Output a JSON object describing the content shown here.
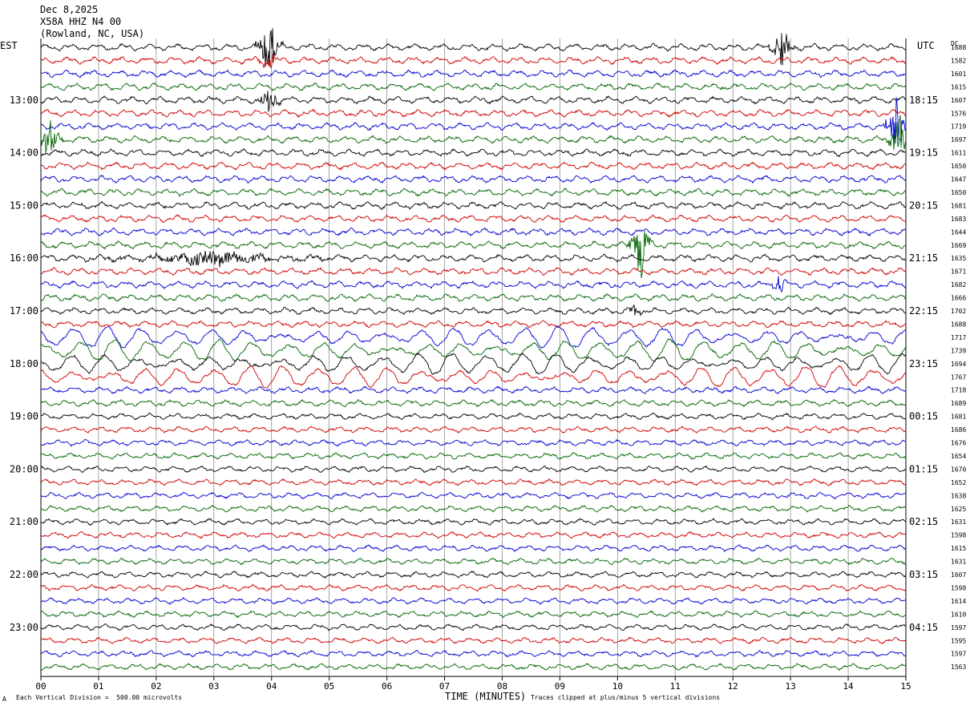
{
  "header": {
    "date": "Dec 8,2025",
    "station": "X58A HHZ N4 00",
    "location": "(Rowland, NC, USA)"
  },
  "left_axis": {
    "label": "EST"
  },
  "right_axis": {
    "label": "UTC",
    "dc_label": "DC"
  },
  "footer": {
    "x_title": "TIME (MINUTES)",
    "scale_note": "Each Vertical Division =  500.00 microvolts",
    "clip_note": "Traces clipped at plus/minus 5 vertical divisions",
    "corner_mark": "A"
  },
  "colors": {
    "cycle": [
      "#000000",
      "#d00000",
      "#0000d0",
      "#006400"
    ],
    "grid": "#808080"
  },
  "chart_data": {
    "type": "line",
    "title": "X58A HHZ N4 00",
    "xlabel": "TIME (MINUTES)",
    "ylabel": "",
    "xlim": [
      0,
      15
    ],
    "x_ticks": [
      "00",
      "01",
      "02",
      "03",
      "04",
      "05",
      "06",
      "07",
      "08",
      "09",
      "10",
      "11",
      "12",
      "13",
      "14",
      "15"
    ],
    "traces_per_hour": 4,
    "est_hour_labels": [
      "13:00",
      "14:00",
      "15:00",
      "16:00",
      "17:00",
      "18:00",
      "19:00",
      "20:00",
      "21:00",
      "22:00",
      "23:00"
    ],
    "utc_labels": [
      "18:15",
      "19:15",
      "20:15",
      "21:15",
      "22:15",
      "23:15",
      "00:15",
      "01:15",
      "02:15",
      "03:15",
      "04:15"
    ],
    "dc_offsets": [
      1688,
      1582,
      1601,
      1615,
      1607,
      1576,
      1719,
      1697,
      1611,
      1650,
      1647,
      1650,
      1681,
      1683,
      1644,
      1669,
      1635,
      1671,
      1682,
      1666,
      1702,
      1688,
      1717,
      1739,
      1694,
      1767,
      1718,
      1689,
      1681,
      1686,
      1676,
      1654,
      1670,
      1652,
      1638,
      1625,
      1631,
      1598,
      1615,
      1631,
      1607,
      1598,
      1614,
      1610,
      1597,
      1595,
      1597,
      1563
    ],
    "events": [
      {
        "trace": 0,
        "minute": 3.95,
        "amp": 3.2
      },
      {
        "trace": 1,
        "minute": 3.95,
        "amp": 1.0
      },
      {
        "trace": 4,
        "minute": 3.95,
        "amp": 1.2
      },
      {
        "trace": 0,
        "minute": 12.85,
        "amp": 2.2
      },
      {
        "trace": 6,
        "minute": 14.85,
        "amp": 3.0
      },
      {
        "trace": 7,
        "minute": 14.9,
        "amp": 2.5
      },
      {
        "trace": 7,
        "minute": 0.15,
        "amp": 1.8
      },
      {
        "trace": 15,
        "minute": 10.4,
        "amp": 3.3
      },
      {
        "trace": 16,
        "minute": 3.0,
        "amp": 0.6,
        "width": 2.5
      },
      {
        "trace": 18,
        "minute": 12.8,
        "amp": 0.9
      },
      {
        "trace": 20,
        "minute": 10.3,
        "amp": 0.5
      }
    ],
    "long_period_traces": [
      22,
      23,
      24,
      25
    ]
  }
}
